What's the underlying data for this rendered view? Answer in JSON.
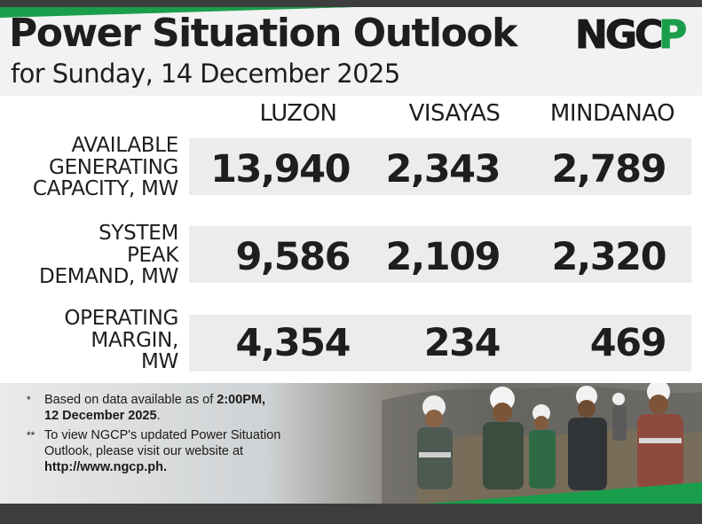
{
  "header": {
    "title": "Power Situation Outlook",
    "subtitle": "for Sunday, 14 December 2025",
    "logo_text": "NGCP"
  },
  "columns": [
    "LUZON",
    "VISAYAS",
    "MINDANAO"
  ],
  "rows": [
    {
      "label_lines": [
        "AVAILABLE",
        "GENERATING",
        "CAPACITY, MW"
      ],
      "values": [
        "13,940",
        "2,343",
        "2,789"
      ]
    },
    {
      "label_lines": [
        "SYSTEM",
        "PEAK",
        "DEMAND, MW"
      ],
      "values": [
        "9,586",
        "2,109",
        "2,320"
      ]
    },
    {
      "label_lines": [
        "OPERATING",
        "MARGIN,",
        "MW"
      ],
      "values": [
        "4,354",
        "234",
        "469"
      ]
    }
  ],
  "notes": {
    "note1": {
      "mark": "*",
      "line1_pre": "Based on data available as of ",
      "line1_bold": "2:00PM,",
      "line2_bold": "12 December 2025",
      "line2_post": "."
    },
    "note2": {
      "mark": "**",
      "line1": "To view NGCP's updated Power Situation",
      "line2": "Outlook, please visit our website at",
      "line3_bold": "http://www.ngcp.ph."
    }
  },
  "colors": {
    "brand_green": "#1a9e4b",
    "dark_bar": "#3d3d3d",
    "header_band": "#f2f2f2",
    "row_band": "#ececec",
    "text": "#1e1e1e"
  },
  "photo": {
    "subject": "group of workers in hard hats pointing at camera",
    "hardhat_logo": "NGCP"
  }
}
